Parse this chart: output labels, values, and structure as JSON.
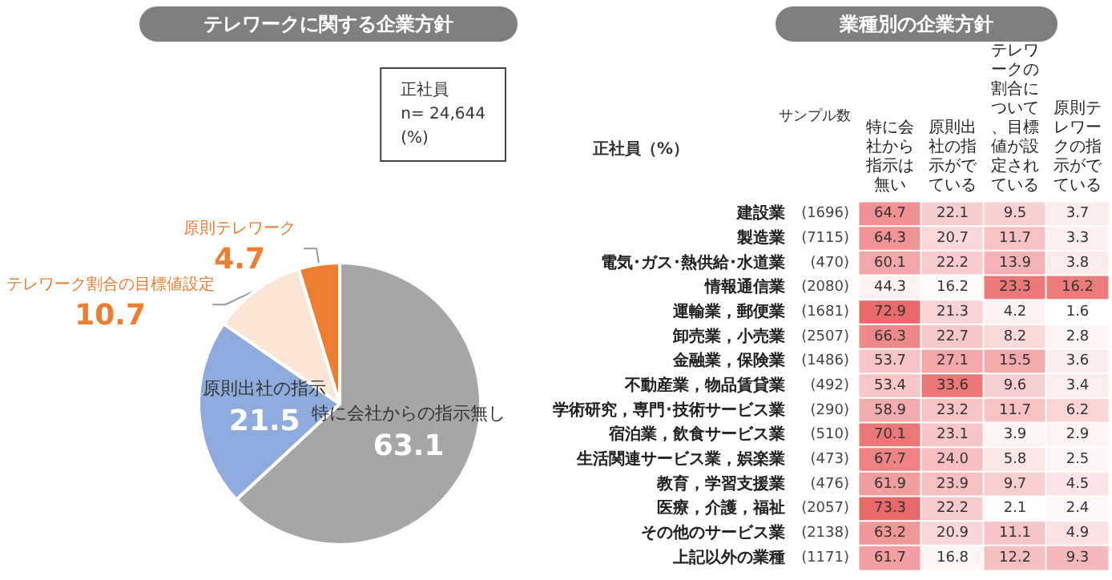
{
  "chart_data": [
    {
      "type": "pie",
      "title": "テレワークに関する企業方針",
      "categories": [
        "特に会社からの指示無し",
        "原則出社の指示",
        "テレワーク割合の目標値設定",
        "原則テレワーク"
      ],
      "values": [
        63.1,
        21.5,
        10.7,
        4.7
      ],
      "colors": [
        "#a6a6a6",
        "#8faadc",
        "#fbe5d6",
        "#ed7d31"
      ],
      "data_labels": true,
      "annotations": [
        "正社員",
        "n= 24,644",
        "(%)"
      ]
    },
    {
      "type": "heatmap",
      "title": "業種別の企業方針",
      "annotations": [
        "正社員（%）",
        "サンプル数"
      ],
      "categories": [
        "特に会社から指示は無い",
        "原則出社の指示がでている",
        "出社／テレワークの割合について、目標値が設定されている",
        "原則テレワークの指示がでている"
      ],
      "y_categories": [
        "建設業",
        "製造業",
        "電気･ガス･熱供給･水道業",
        "情報通信業",
        "運輸業，郵便業",
        "卸売業，小売業",
        "金融業，保険業",
        "不動産業，物品賃貸業",
        "学術研究，専門･技術サービス業",
        "宿泊業，飲食サービス業",
        "生活関連サービス業，娯楽業",
        "教育，学習支援業",
        "医療，介護，福祉",
        "その他のサービス業",
        "上記以外の業種"
      ],
      "y2_categories": [
        "(1696)",
        "(7115)",
        "(470)",
        "(2080)",
        "(1681)",
        "(2507)",
        "(1486)",
        "(492)",
        "(290)",
        "(510)",
        "(473)",
        "(476)",
        "(2057)",
        "(2138)",
        "(1171)"
      ],
      "cells": [
        [
          64.7,
          22.1,
          9.5,
          3.7
        ],
        [
          64.3,
          20.7,
          11.7,
          3.3
        ],
        [
          60.1,
          22.2,
          13.9,
          3.8
        ],
        [
          44.3,
          16.2,
          23.3,
          16.2
        ],
        [
          72.9,
          21.3,
          4.2,
          1.6
        ],
        [
          66.3,
          22.7,
          8.2,
          2.8
        ],
        [
          53.7,
          27.1,
          15.5,
          3.6
        ],
        [
          53.4,
          33.6,
          9.6,
          3.4
        ],
        [
          58.9,
          23.2,
          11.7,
          6.2
        ],
        [
          70.1,
          23.1,
          3.9,
          2.9
        ],
        [
          67.7,
          24.0,
          5.8,
          2.5
        ],
        [
          61.9,
          23.9,
          9.7,
          4.5
        ],
        [
          73.3,
          22.2,
          2.1,
          2.4
        ],
        [
          63.2,
          20.9,
          11.1,
          4.9
        ],
        [
          61.7,
          16.8,
          12.2,
          9.3
        ]
      ],
      "cell_labels": [
        [
          "64.7",
          "22.1",
          "9.5",
          "3.7"
        ],
        [
          "64.3",
          "20.7",
          "11.7",
          "3.3"
        ],
        [
          "60.1",
          "22.2",
          "13.9",
          "3.8"
        ],
        [
          "44.3",
          "16.2",
          "23.3",
          "16.2"
        ],
        [
          "72.9",
          "21.3",
          "4.2",
          "1.6"
        ],
        [
          "66.3",
          "22.7",
          "8.2",
          "2.8"
        ],
        [
          "53.7",
          "27.1",
          "15.5",
          "3.6"
        ],
        [
          "53.4",
          "33.6",
          "9.6",
          "3.4"
        ],
        [
          "58.9",
          "23.2",
          "11.7",
          "6.2"
        ],
        [
          "70.1",
          "23.1",
          "3.9",
          "2.9"
        ],
        [
          "67.7",
          "24.0",
          "5.8",
          "2.5"
        ],
        [
          "61.9",
          "23.9",
          "9.7",
          "4.5"
        ],
        [
          "73.3",
          "22.2",
          "2.1",
          "2.4"
        ],
        [
          "63.2",
          "20.9",
          "11.1",
          "4.9"
        ],
        [
          "61.7",
          "16.8",
          "12.2",
          "9.3"
        ]
      ],
      "data_labels": true
    }
  ]
}
